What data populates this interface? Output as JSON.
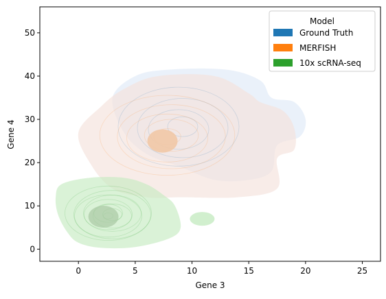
{
  "chart_data": {
    "type": "kde-density",
    "xlabel": "Gene 3",
    "ylabel": "Gene 4",
    "xlim": [
      -3.4,
      26.6
    ],
    "ylim": [
      -2.8,
      56
    ],
    "xticks": [
      0,
      5,
      10,
      15,
      20,
      25
    ],
    "yticks": [
      0,
      10,
      20,
      30,
      40,
      50
    ],
    "legend": {
      "title": "Model",
      "placement": "upper-right",
      "entries": [
        "Ground Truth",
        "MERFISH",
        "10x scRNA-seq"
      ]
    },
    "series": [
      {
        "name": "Ground Truth",
        "color": "#1f77b4",
        "fill": "#e3ecf8",
        "outer_region": [
          [
            5,
            40
          ],
          [
            8,
            41.5
          ],
          [
            13,
            41.5
          ],
          [
            16,
            39
          ],
          [
            17,
            35
          ],
          [
            19,
            34
          ],
          [
            20,
            30
          ],
          [
            19.5,
            26
          ],
          [
            17.5,
            24
          ],
          [
            17,
            18
          ],
          [
            15,
            16
          ],
          [
            12,
            16
          ],
          [
            9,
            19
          ],
          [
            6,
            22
          ],
          [
            4,
            27
          ],
          [
            3,
            35
          ]
        ],
        "contour_center": [
          9,
          28
        ],
        "contour_levels": 4
      },
      {
        "name": "MERFISH",
        "color": "#ff7f0e",
        "fill": "#f5e2db",
        "outer_region": [
          [
            2,
            33
          ],
          [
            4,
            37
          ],
          [
            7,
            40
          ],
          [
            12,
            40
          ],
          [
            15,
            36
          ],
          [
            16,
            34
          ],
          [
            18,
            32
          ],
          [
            19,
            28
          ],
          [
            19,
            23
          ],
          [
            17.5,
            21
          ],
          [
            17.5,
            14
          ],
          [
            14,
            12
          ],
          [
            9,
            12
          ],
          [
            6,
            12
          ],
          [
            3,
            14
          ],
          [
            1,
            20
          ],
          [
            0,
            27
          ]
        ],
        "core_center": [
          7.4,
          25
        ],
        "contour_center": [
          8,
          26
        ],
        "contour_levels": 5
      },
      {
        "name": "10x scRNA-seq",
        "color": "#2ca02c",
        "fill": "#c6ebc2",
        "outer_region": [
          [
            -1.5,
            15
          ],
          [
            1,
            16.5
          ],
          [
            4,
            16.5
          ],
          [
            6,
            15
          ],
          [
            7.5,
            12.5
          ],
          [
            8.5,
            10
          ],
          [
            9,
            5
          ],
          [
            8,
            2.5
          ],
          [
            5,
            0.5
          ],
          [
            2,
            0.3
          ],
          [
            0,
            1.5
          ],
          [
            -1,
            4
          ],
          [
            -1.8,
            8
          ],
          [
            -2,
            12
          ]
        ],
        "secondary_region_center": [
          10.9,
          7
        ],
        "core_center": [
          2.2,
          7.5
        ],
        "contour_center": [
          2.8,
          8
        ],
        "contour_levels": 9
      }
    ]
  }
}
